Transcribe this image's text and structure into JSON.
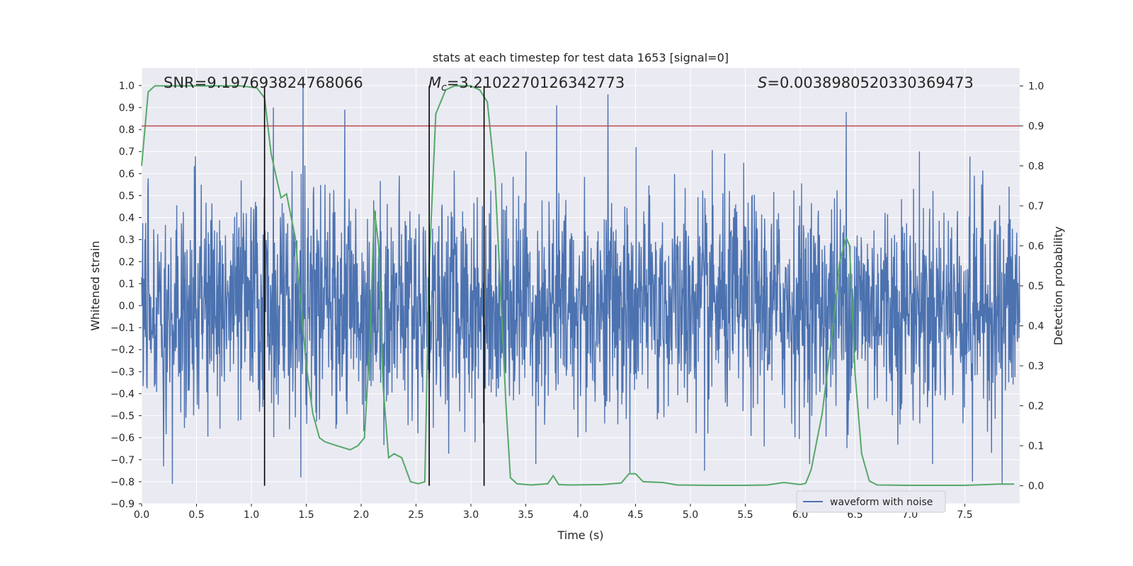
{
  "chart_data": {
    "type": "line",
    "title": "stats at each timestep for test data 1653 [signal=0]",
    "xlabel": "Time (s)",
    "ylabel": "Whitened strain",
    "y2label": "Detection probability",
    "xlim": [
      0.0,
      8.0
    ],
    "ylim": [
      -0.9,
      1.08
    ],
    "y2lim": [
      -0.045,
      1.045
    ],
    "xticks": [
      0.0,
      0.5,
      1.0,
      1.5,
      2.0,
      2.5,
      3.0,
      3.5,
      4.0,
      4.5,
      5.0,
      5.5,
      6.0,
      6.5,
      7.0,
      7.5
    ],
    "xtick_labels": [
      "0.0",
      "0.5",
      "1.0",
      "1.5",
      "2.0",
      "2.5",
      "3.0",
      "3.5",
      "4.0",
      "4.5",
      "5.0",
      "5.5",
      "6.0",
      "6.5",
      "7.0",
      "7.5"
    ],
    "yticks": [
      1.0,
      0.9,
      0.8,
      0.7,
      0.6,
      0.5,
      0.4,
      0.3,
      0.2,
      0.1,
      0.0,
      -0.1,
      -0.2,
      -0.3,
      -0.4,
      -0.5,
      -0.6,
      -0.7,
      -0.8,
      -0.9
    ],
    "ytick_labels": [
      "1.0",
      "0.9",
      "0.8",
      "0.7",
      "0.6",
      "0.5",
      "0.4",
      "0.3",
      "0.2",
      "0.1",
      "0.0",
      "−0.1",
      "−0.2",
      "−0.3",
      "−0.4",
      "−0.5",
      "−0.6",
      "−0.7",
      "−0.8",
      "−0.9"
    ],
    "y2ticks": [
      1.0,
      0.9,
      0.8,
      0.7,
      0.6,
      0.5,
      0.4,
      0.3,
      0.2,
      0.1,
      0.0
    ],
    "y2tick_labels": [
      "1.0",
      "0.9",
      "0.8",
      "0.7",
      "0.6",
      "0.5",
      "0.4",
      "0.3",
      "0.2",
      "0.1",
      "0.0"
    ],
    "grid": true,
    "legend": {
      "placement": "lower-right",
      "entries": [
        "waveform with noise"
      ]
    },
    "annotations": {
      "snr_text": "SNR=9.197693824768066",
      "mc_prefix": "M",
      "mc_sub": "c",
      "mc_value": "=3.2102270126342773",
      "s_prefix": "S",
      "s_value": "=0.003898052033036947​3"
    },
    "threshold": {
      "axis": "y2",
      "value": 0.9,
      "color": "#c44e52"
    },
    "vertical_lines": [
      1.12,
      2.62,
      3.12
    ],
    "series": [
      {
        "name": "waveform with noise",
        "axis": "y",
        "color": "#4c72b0",
        "kind": "noise",
        "duration": 8.0,
        "sample_count": 2400,
        "typical_amplitude": 0.45,
        "spikes": [
          {
            "t": 0.28,
            "v": -0.81
          },
          {
            "t": 1.47,
            "v": 1.0
          },
          {
            "t": 1.85,
            "v": 0.89
          },
          {
            "t": 3.78,
            "v": 0.91
          },
          {
            "t": 4.25,
            "v": 0.96
          },
          {
            "t": 6.42,
            "v": 0.88
          },
          {
            "t": 1.2,
            "v": 0.9
          },
          {
            "t": 7.84,
            "v": -0.81
          },
          {
            "t": 7.57,
            "v": -0.8
          },
          {
            "t": 1.45,
            "v": -0.78
          },
          {
            "t": 4.45,
            "v": -0.76
          },
          {
            "t": 0.2,
            "v": -0.73
          },
          {
            "t": 3.5,
            "v": 0.7
          },
          {
            "t": 5.13,
            "v": -0.75
          }
        ]
      },
      {
        "name": "",
        "axis": "y2",
        "color": "#55a868",
        "kind": "line",
        "points": [
          [
            0.0,
            0.8
          ],
          [
            0.06,
            0.985
          ],
          [
            0.12,
            1.0
          ],
          [
            0.9,
            1.0
          ],
          [
            1.05,
            0.995
          ],
          [
            1.12,
            0.97
          ],
          [
            1.18,
            0.83
          ],
          [
            1.22,
            0.78
          ],
          [
            1.27,
            0.72
          ],
          [
            1.32,
            0.73
          ],
          [
            1.4,
            0.62
          ],
          [
            1.5,
            0.3
          ],
          [
            1.56,
            0.18
          ],
          [
            1.62,
            0.12
          ],
          [
            1.67,
            0.11
          ],
          [
            1.78,
            0.1
          ],
          [
            1.9,
            0.09
          ],
          [
            1.97,
            0.1
          ],
          [
            2.03,
            0.12
          ],
          [
            2.08,
            0.36
          ],
          [
            2.12,
            0.69
          ],
          [
            2.16,
            0.6
          ],
          [
            2.2,
            0.25
          ],
          [
            2.25,
            0.07
          ],
          [
            2.3,
            0.08
          ],
          [
            2.37,
            0.07
          ],
          [
            2.45,
            0.01
          ],
          [
            2.52,
            0.005
          ],
          [
            2.58,
            0.01
          ],
          [
            2.62,
            0.55
          ],
          [
            2.68,
            0.93
          ],
          [
            2.77,
            0.99
          ],
          [
            2.85,
            1.0
          ],
          [
            3.0,
            1.0
          ],
          [
            3.08,
            0.99
          ],
          [
            3.15,
            0.96
          ],
          [
            3.22,
            0.77
          ],
          [
            3.32,
            0.2
          ],
          [
            3.36,
            0.02
          ],
          [
            3.42,
            0.005
          ],
          [
            3.55,
            0.002
          ],
          [
            3.7,
            0.005
          ],
          [
            3.75,
            0.025
          ],
          [
            3.8,
            0.003
          ],
          [
            3.9,
            0.002
          ],
          [
            4.2,
            0.003
          ],
          [
            4.37,
            0.007
          ],
          [
            4.44,
            0.03
          ],
          [
            4.5,
            0.03
          ],
          [
            4.57,
            0.01
          ],
          [
            4.75,
            0.008
          ],
          [
            4.88,
            0.002
          ],
          [
            5.2,
            0.001
          ],
          [
            5.5,
            0.001
          ],
          [
            5.7,
            0.002
          ],
          [
            5.85,
            0.008
          ],
          [
            6.0,
            0.003
          ],
          [
            6.05,
            0.006
          ],
          [
            6.1,
            0.04
          ],
          [
            6.2,
            0.18
          ],
          [
            6.3,
            0.4
          ],
          [
            6.36,
            0.56
          ],
          [
            6.42,
            0.62
          ],
          [
            6.45,
            0.6
          ],
          [
            6.5,
            0.28
          ],
          [
            6.56,
            0.08
          ],
          [
            6.63,
            0.012
          ],
          [
            6.7,
            0.002
          ],
          [
            7.0,
            0.001
          ],
          [
            7.5,
            0.001
          ],
          [
            7.8,
            0.004
          ],
          [
            7.95,
            0.004
          ]
        ]
      }
    ]
  }
}
